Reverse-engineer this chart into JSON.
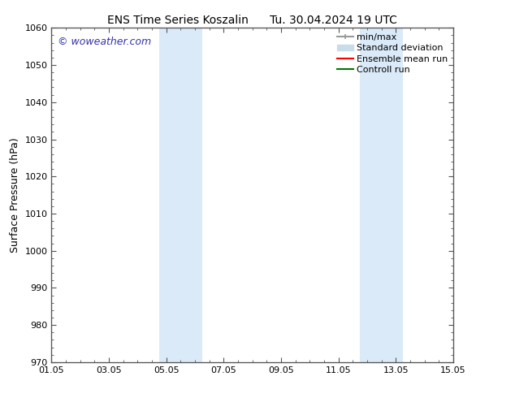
{
  "title": "ENS Time Series Koszalin      Tu. 30.04.2024 19 UTC",
  "ylabel": "Surface Pressure (hPa)",
  "ylim": [
    970,
    1060
  ],
  "yticks": [
    970,
    980,
    990,
    1000,
    1010,
    1020,
    1030,
    1040,
    1050,
    1060
  ],
  "xtick_labels": [
    "01.05",
    "03.05",
    "05.05",
    "07.05",
    "09.05",
    "11.05",
    "13.05",
    "15.05"
  ],
  "xtick_positions": [
    0,
    2,
    4,
    6,
    8,
    10,
    12,
    14
  ],
  "x_minor_positions": [
    0,
    0.5,
    1,
    1.5,
    2,
    2.5,
    3,
    3.5,
    4,
    4.5,
    5,
    5.5,
    6,
    6.5,
    7,
    7.5,
    8,
    8.5,
    9,
    9.5,
    10,
    10.5,
    11,
    11.5,
    12,
    12.5,
    13,
    13.5,
    14
  ],
  "shaded_bands": [
    {
      "x_start": 3.75,
      "x_end": 5.25
    },
    {
      "x_start": 10.75,
      "x_end": 12.25
    }
  ],
  "shade_color": "#daeaf8",
  "watermark_text": "© woweather.com",
  "watermark_color": "#3333aa",
  "legend_items": [
    {
      "label": "min/max",
      "color": "#999999",
      "lw": 1.5,
      "ls": "-",
      "type": "line_caps"
    },
    {
      "label": "Standard deviation",
      "color": "#c8dcea",
      "lw": 8,
      "ls": "-",
      "type": "patch"
    },
    {
      "label": "Ensemble mean run",
      "color": "#ff0000",
      "lw": 1.5,
      "ls": "-",
      "type": "line"
    },
    {
      "label": "Controll run",
      "color": "#007700",
      "lw": 1.5,
      "ls": "-",
      "type": "line"
    }
  ],
  "bg_color": "#ffffff",
  "spine_color": "#555555",
  "title_fontsize": 10,
  "ylabel_fontsize": 9,
  "tick_fontsize": 8,
  "legend_fontsize": 8,
  "watermark_fontsize": 9,
  "xlim": [
    0,
    14
  ]
}
